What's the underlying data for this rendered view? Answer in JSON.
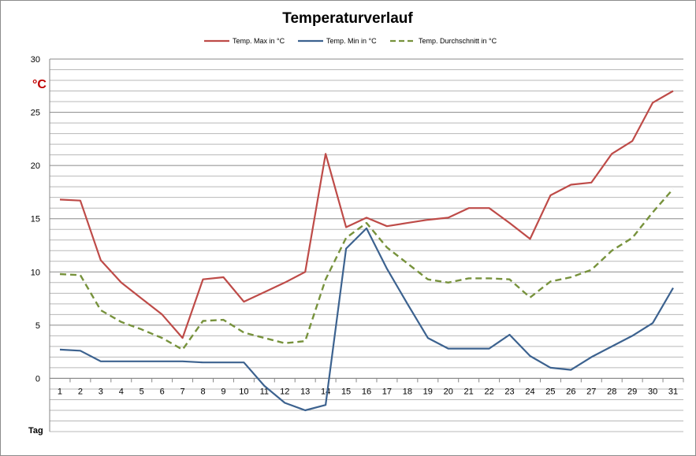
{
  "chart_data": {
    "type": "line",
    "title": "Temperaturverlauf",
    "ylabel": "°C",
    "xlabel": "Tag",
    "ylim": [
      -5,
      30
    ],
    "yticks": [
      0,
      5,
      10,
      15,
      20,
      25,
      30
    ],
    "grid_step": 1,
    "grid": true,
    "legend_position": "top",
    "x": [
      1,
      2,
      3,
      4,
      5,
      6,
      7,
      8,
      9,
      10,
      11,
      12,
      13,
      14,
      15,
      16,
      17,
      18,
      19,
      20,
      21,
      22,
      23,
      24,
      25,
      26,
      27,
      28,
      29,
      30,
      31
    ],
    "series": [
      {
        "name": "Temp. Max in °C",
        "color": "#be4b48",
        "dash": "solid",
        "values": [
          16.8,
          16.7,
          11.1,
          9.0,
          7.5,
          6.0,
          3.8,
          9.3,
          9.5,
          7.2,
          8.1,
          9.0,
          10.0,
          21.1,
          14.2,
          15.1,
          14.3,
          14.6,
          14.9,
          15.1,
          16.0,
          16.0,
          14.6,
          13.1,
          17.2,
          18.2,
          18.4,
          21.1,
          22.3,
          25.9,
          27.0
        ]
      },
      {
        "name": "Temp. Min in °C",
        "color": "#3c628f",
        "dash": "solid",
        "values": [
          2.7,
          2.6,
          1.6,
          1.6,
          1.6,
          1.6,
          1.6,
          1.5,
          1.5,
          1.5,
          -0.7,
          -2.3,
          -3.0,
          -2.5,
          12.2,
          14.1,
          10.3,
          7.0,
          3.8,
          2.8,
          2.8,
          2.8,
          4.1,
          2.1,
          1.0,
          0.8,
          2.0,
          3.0,
          4.0,
          5.2,
          8.5
        ]
      },
      {
        "name": "Temp. Durchschnitt in °C",
        "color": "#77923c",
        "dash": "dashed",
        "values": [
          9.8,
          9.7,
          6.4,
          5.3,
          4.6,
          3.8,
          2.7,
          5.4,
          5.5,
          4.3,
          3.8,
          3.3,
          3.5,
          9.3,
          13.2,
          14.6,
          12.3,
          10.8,
          9.3,
          9.0,
          9.4,
          9.4,
          9.3,
          7.6,
          9.1,
          9.5,
          10.2,
          12.0,
          13.2,
          15.6,
          17.8
        ]
      }
    ]
  }
}
